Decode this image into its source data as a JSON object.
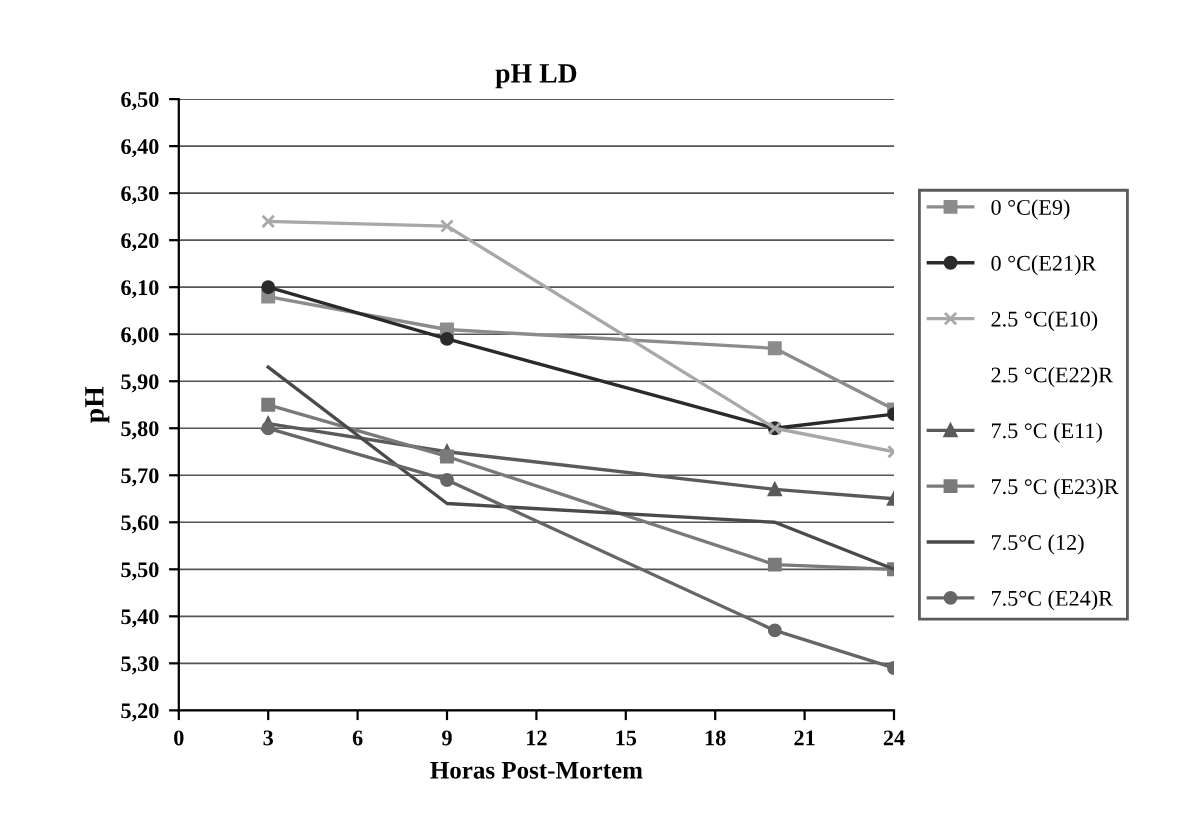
{
  "chart_data": {
    "type": "line",
    "title": "pH LD",
    "xlabel": "Horas Post-Mortem",
    "ylabel": "pH",
    "x": [
      3,
      9,
      20,
      24
    ],
    "series": [
      {
        "name": "0 °C(E9)",
        "color": "#8c8c8c",
        "marker": "square",
        "values": [
          6.08,
          6.01,
          5.97,
          5.84
        ]
      },
      {
        "name": "0 °C(E21)R",
        "color": "#2a2a2a",
        "marker": "circle",
        "values": [
          6.1,
          5.99,
          5.8,
          5.83
        ]
      },
      {
        "name": "2.5 °C(E10)",
        "color": "#a8a8a8",
        "marker": "cross",
        "values": [
          6.24,
          6.23,
          5.8,
          5.75
        ]
      },
      {
        "name": "2.5 °C(E22)R",
        "marker": "none",
        "values": [
          null,
          null,
          null,
          null
        ]
      },
      {
        "name": "7.5 °C (E11)",
        "color": "#5a5a5a",
        "marker": "triangle",
        "values": [
          5.81,
          5.75,
          5.67,
          5.65
        ]
      },
      {
        "name": "7.5 °C (E23)R",
        "color": "#7a7a7a",
        "marker": "square",
        "values": [
          5.85,
          5.74,
          5.51,
          5.5
        ]
      },
      {
        "name": "7.5°C (12)",
        "color": "#4a4a4a",
        "marker": "none",
        "values": [
          5.93,
          5.64,
          5.6,
          5.5
        ]
      },
      {
        "name": "7.5°C (E24)R",
        "color": "#666666",
        "marker": "circle",
        "values": [
          5.8,
          5.69,
          5.37,
          5.29
        ]
      }
    ],
    "xlim": [
      0,
      24
    ],
    "xticks": [
      0,
      3,
      6,
      9,
      12,
      15,
      18,
      21,
      24
    ],
    "ylim": [
      5.2,
      6.5
    ],
    "yticks": [
      {
        "value": 5.2,
        "label": "5,20"
      },
      {
        "value": 5.3,
        "label": "5,30"
      },
      {
        "value": 5.4,
        "label": "5,40"
      },
      {
        "value": 5.5,
        "label": "5,50"
      },
      {
        "value": 5.6,
        "label": "5,60"
      },
      {
        "value": 5.7,
        "label": "5,70"
      },
      {
        "value": 5.8,
        "label": "5,80"
      },
      {
        "value": 5.9,
        "label": "5,90"
      },
      {
        "value": 6.0,
        "label": "6,00"
      },
      {
        "value": 6.1,
        "label": "6,10"
      },
      {
        "value": 6.2,
        "label": "6,20"
      },
      {
        "value": 6.3,
        "label": "6,30"
      },
      {
        "value": 6.4,
        "label": "6,40"
      },
      {
        "value": 6.5,
        "label": "6,50"
      }
    ],
    "grid": "y",
    "legend": "right"
  }
}
